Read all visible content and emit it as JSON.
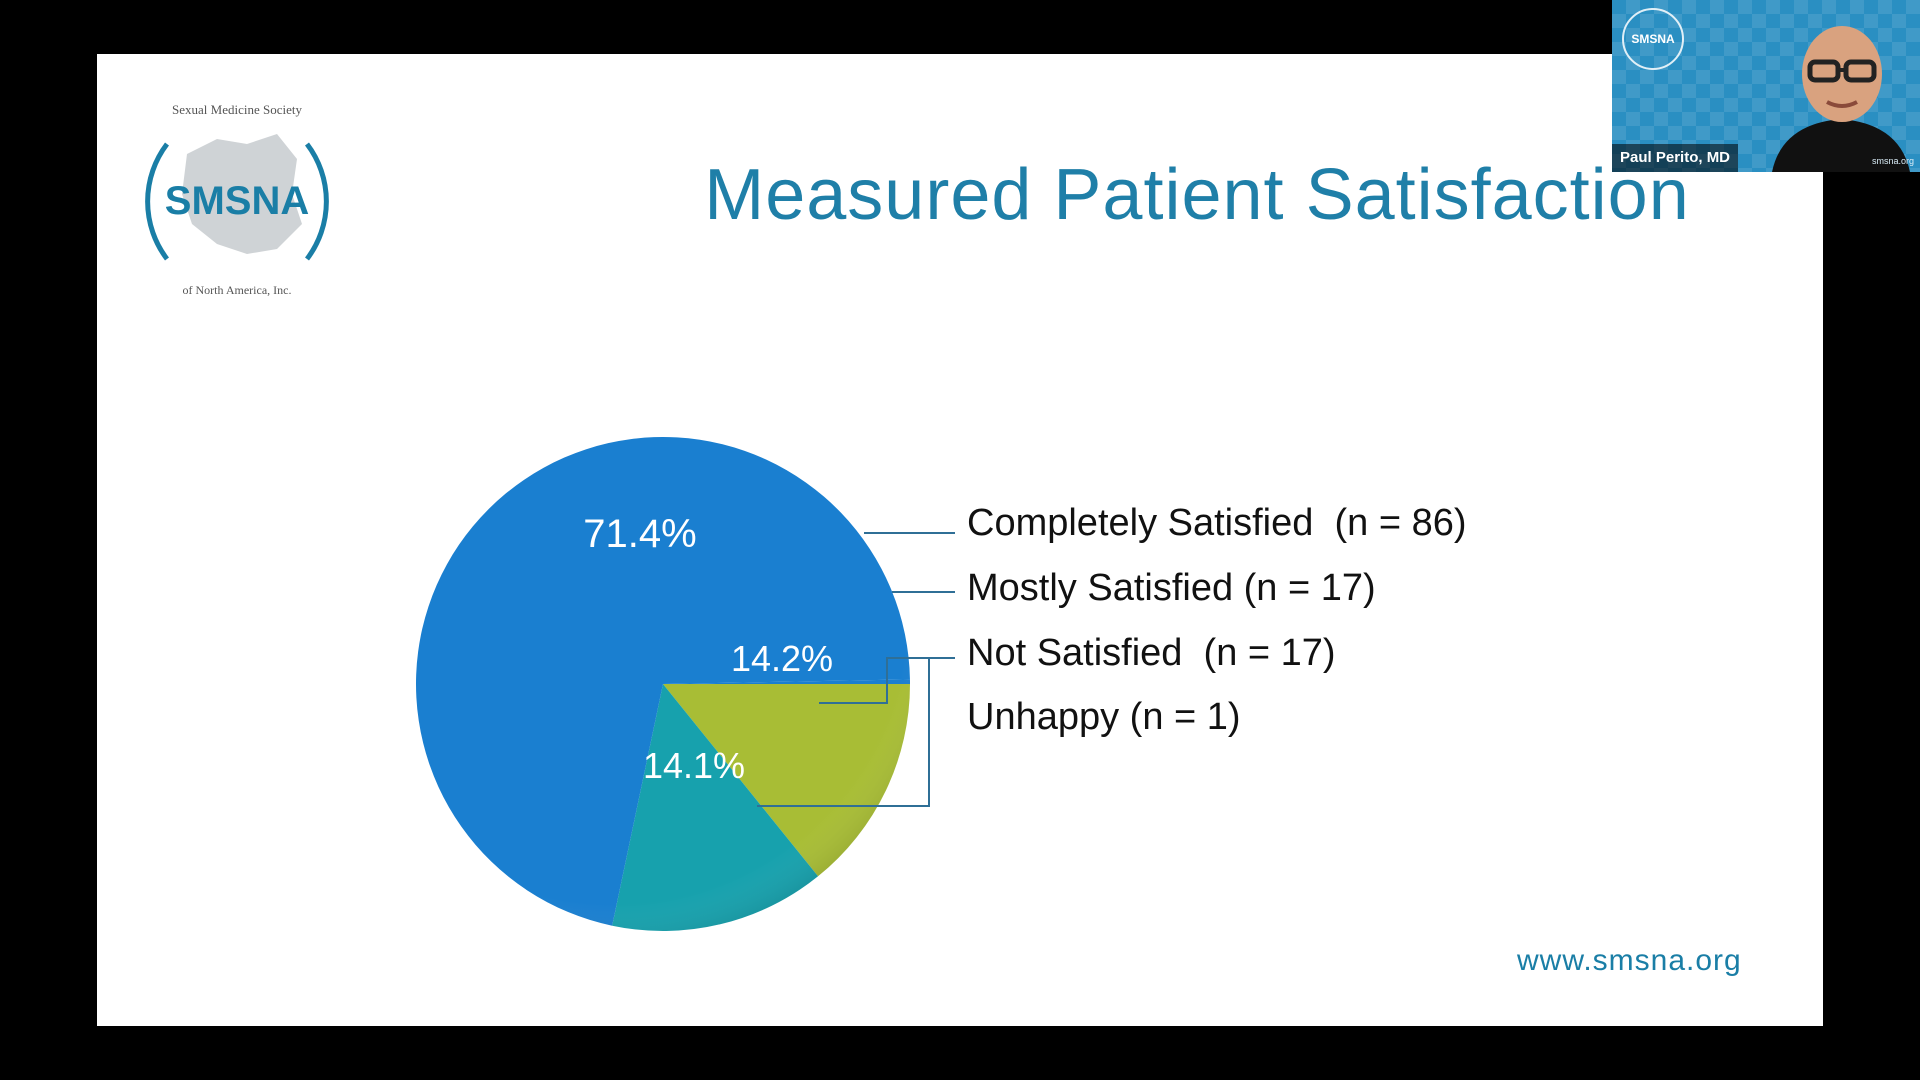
{
  "slide": {
    "title": "Measured Patient Satisfaction",
    "website": "www.smsna.org",
    "logo": {
      "acronym": "SMSNA",
      "arc_top_text": "Sexual Medicine Society",
      "arc_bottom_text": "of North America, Inc."
    }
  },
  "video_tile": {
    "participant_name": "Paul Perito, MD",
    "badge_text": "SMSNA",
    "corner_text": "smsna.org"
  },
  "colors": {
    "title": "#1f7fa8",
    "completely_satisfied": "#1a7fd0",
    "mostly_satisfied": "#a8bd35",
    "not_satisfied": "#17a1ad",
    "leader_lines": "#2f6f96"
  },
  "chart_data": {
    "type": "pie",
    "categories": [
      "Completely Satisfied",
      "Mostly Satisfied",
      "Not Satisfied",
      "Unhappy"
    ],
    "values": [
      71.4,
      14.2,
      14.1,
      0.3
    ],
    "data_labels": [
      "71.4%",
      "14.2%",
      "14.1%",
      ""
    ],
    "legend_entries": [
      "Completely Satisfied  (n = 86)",
      "Mostly Satisfied (n = 17)",
      "Not Satisfied  (n = 17)",
      "Unhappy (n = 1)"
    ],
    "legend_placement": "right"
  }
}
